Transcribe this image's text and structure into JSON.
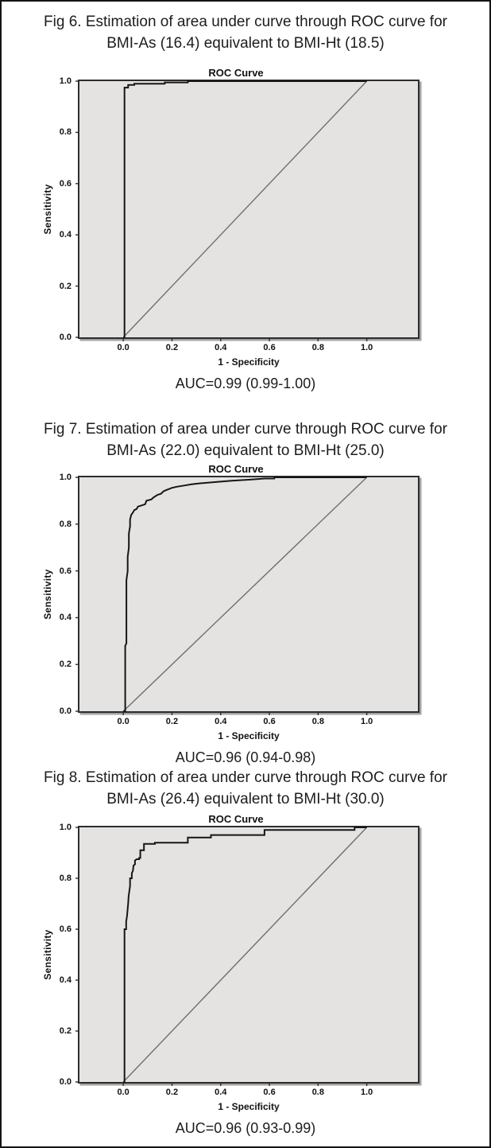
{
  "page": {
    "background": "#ffffff",
    "border_color": "#141414"
  },
  "figures": [
    {
      "caption_line1": "Fig 6. Estimation of area under curve through ROC curve for",
      "caption_line2": "BMI-As (16.4) equivalent to BMI-Ht (18.5)",
      "auc_text": "AUC=0.99 (0.99-1.00)"
    },
    {
      "caption_line1": "Fig 7. Estimation of area under curve through ROC curve for",
      "caption_line2": "BMI-As (22.0) equivalent to BMI-Ht (25.0)",
      "auc_text": "AUC=0.96 (0.94-0.98)"
    },
    {
      "caption_line1": "Fig 8. Estimation of area under curve through ROC curve for",
      "caption_line2": "BMI-As (26.4) equivalent to BMI-Ht (30.0)",
      "auc_text": "AUC=0.96 (0.93-0.99)"
    }
  ],
  "chart_data": [
    {
      "type": "line",
      "title": "ROC Curve",
      "xlabel": "1 - Specificity",
      "ylabel": "Sensitivity",
      "xticks": [
        0.0,
        0.2,
        0.4,
        0.6,
        0.8,
        1.0
      ],
      "yticks": [
        0.0,
        0.2,
        0.4,
        0.6,
        0.8,
        1.0
      ],
      "xlim": [
        -0.18,
        1.21
      ],
      "ylim": [
        0,
        1
      ],
      "grid": false,
      "legend": "none",
      "plot_background": "#e4e3e1",
      "frame_color": "#2d2d2d",
      "auc": 0.99,
      "auc_ci_low": 0.99,
      "auc_ci_high": 1.0,
      "series": [
        {
          "name": "ROC curve",
          "color": "#161616",
          "width": 2,
          "points": [
            [
              0,
              0
            ],
            [
              0.005,
              0
            ],
            [
              0.005,
              0.975
            ],
            [
              0.02,
              0.975
            ],
            [
              0.02,
              0.985
            ],
            [
              0.045,
              0.985
            ],
            [
              0.045,
              0.99
            ],
            [
              0.17,
              0.99
            ],
            [
              0.17,
              0.995
            ],
            [
              0.265,
              0.995
            ],
            [
              0.265,
              1.0
            ],
            [
              1.0,
              1.0
            ]
          ]
        },
        {
          "name": "Reference line",
          "color": "#6f6f6f",
          "width": 1.4,
          "points": [
            [
              0,
              0
            ],
            [
              1,
              1
            ]
          ]
        }
      ]
    },
    {
      "type": "line",
      "title": "ROC Curve",
      "xlabel": "1 - Specificity",
      "ylabel": "Sensitivity",
      "xticks": [
        0.0,
        0.2,
        0.4,
        0.6,
        0.8,
        1.0
      ],
      "yticks": [
        0.0,
        0.2,
        0.4,
        0.6,
        0.8,
        1.0
      ],
      "xlim": [
        -0.18,
        1.21
      ],
      "ylim": [
        0,
        1
      ],
      "grid": false,
      "legend": "none",
      "plot_background": "#e4e3e1",
      "frame_color": "#2d2d2d",
      "auc": 0.96,
      "auc_ci_low": 0.94,
      "auc_ci_high": 0.98,
      "series": [
        {
          "name": "ROC curve",
          "color": "#161616",
          "width": 2,
          "points": [
            [
              0,
              0
            ],
            [
              0.008,
              0
            ],
            [
              0.008,
              0.28
            ],
            [
              0.013,
              0.29
            ],
            [
              0.013,
              0.56
            ],
            [
              0.018,
              0.6
            ],
            [
              0.018,
              0.66
            ],
            [
              0.023,
              0.7
            ],
            [
              0.023,
              0.76
            ],
            [
              0.028,
              0.79
            ],
            [
              0.028,
              0.82
            ],
            [
              0.033,
              0.84
            ],
            [
              0.04,
              0.85
            ],
            [
              0.045,
              0.86
            ],
            [
              0.055,
              0.865
            ],
            [
              0.06,
              0.875
            ],
            [
              0.075,
              0.88
            ],
            [
              0.09,
              0.885
            ],
            [
              0.095,
              0.9
            ],
            [
              0.115,
              0.905
            ],
            [
              0.125,
              0.915
            ],
            [
              0.14,
              0.925
            ],
            [
              0.155,
              0.93
            ],
            [
              0.165,
              0.94
            ],
            [
              0.175,
              0.945
            ],
            [
              0.2,
              0.955
            ],
            [
              0.22,
              0.96
            ],
            [
              0.25,
              0.965
            ],
            [
              0.28,
              0.97
            ],
            [
              0.32,
              0.975
            ],
            [
              0.38,
              0.98
            ],
            [
              0.44,
              0.985
            ],
            [
              0.52,
              0.99
            ],
            [
              0.58,
              0.995
            ],
            [
              0.62,
              0.995
            ],
            [
              0.62,
              1.0
            ],
            [
              1.0,
              1.0
            ]
          ]
        },
        {
          "name": "Reference line",
          "color": "#6f6f6f",
          "width": 1.4,
          "points": [
            [
              0,
              0
            ],
            [
              1,
              1
            ]
          ]
        }
      ]
    },
    {
      "type": "line",
      "title": "ROC Curve",
      "xlabel": "1 - Specificity",
      "ylabel": "Sensitivity",
      "xticks": [
        0.0,
        0.2,
        0.4,
        0.6,
        0.8,
        1.0
      ],
      "yticks": [
        0.0,
        0.2,
        0.4,
        0.6,
        0.8,
        1.0
      ],
      "xlim": [
        -0.18,
        1.21
      ],
      "ylim": [
        0,
        1
      ],
      "grid": false,
      "legend": "none",
      "plot_background": "#e4e3e1",
      "frame_color": "#2d2d2d",
      "auc": 0.96,
      "auc_ci_low": 0.93,
      "auc_ci_high": 0.99,
      "series": [
        {
          "name": "ROC curve",
          "color": "#161616",
          "width": 2,
          "points": [
            [
              0,
              0
            ],
            [
              0.005,
              0
            ],
            [
              0.005,
              0.6
            ],
            [
              0.012,
              0.6
            ],
            [
              0.012,
              0.63
            ],
            [
              0.015,
              0.65
            ],
            [
              0.018,
              0.68
            ],
            [
              0.02,
              0.7
            ],
            [
              0.022,
              0.73
            ],
            [
              0.025,
              0.75
            ],
            [
              0.028,
              0.77
            ],
            [
              0.028,
              0.8
            ],
            [
              0.035,
              0.8
            ],
            [
              0.035,
              0.82
            ],
            [
              0.04,
              0.83
            ],
            [
              0.042,
              0.85
            ],
            [
              0.048,
              0.855
            ],
            [
              0.048,
              0.87
            ],
            [
              0.055,
              0.875
            ],
            [
              0.065,
              0.875
            ],
            [
              0.065,
              0.88
            ],
            [
              0.07,
              0.88
            ],
            [
              0.07,
              0.91
            ],
            [
              0.085,
              0.91
            ],
            [
              0.085,
              0.935
            ],
            [
              0.13,
              0.935
            ],
            [
              0.13,
              0.94
            ],
            [
              0.265,
              0.94
            ],
            [
              0.265,
              0.96
            ],
            [
              0.36,
              0.96
            ],
            [
              0.36,
              0.97
            ],
            [
              0.58,
              0.97
            ],
            [
              0.58,
              0.99
            ],
            [
              0.95,
              0.99
            ],
            [
              0.95,
              1.0
            ],
            [
              1.0,
              1.0
            ]
          ]
        },
        {
          "name": "Reference line",
          "color": "#6f6f6f",
          "width": 1.4,
          "points": [
            [
              0,
              0
            ],
            [
              1,
              1
            ]
          ]
        }
      ]
    }
  ]
}
